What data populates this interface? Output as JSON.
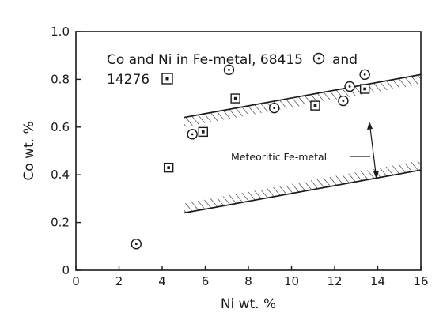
{
  "chart_data": {
    "type": "scatter",
    "title_line1": "Co and Ni in Fe-metal, 68415",
    "title_mid": "and",
    "title_line2": "14276",
    "xlabel": "Ni wt. %",
    "ylabel": "Co wt. %",
    "xlim": [
      0,
      16
    ],
    "ylim": [
      0,
      1.0
    ],
    "x_ticks": [
      "0",
      "2",
      "4",
      "6",
      "8",
      "10",
      "12",
      "14",
      "16"
    ],
    "y_ticks": [
      "0",
      "0.2",
      "0.4",
      "0.6",
      "0.8",
      "1.0"
    ],
    "grid": false,
    "series": [
      {
        "marker": "circle-dot",
        "points": [
          [
            2.8,
            0.11
          ],
          [
            5.4,
            0.57
          ],
          [
            7.1,
            0.84
          ],
          [
            9.2,
            0.68
          ],
          [
            12.4,
            0.71
          ],
          [
            12.7,
            0.77
          ],
          [
            13.4,
            0.82
          ]
        ]
      },
      {
        "marker": "square-dot",
        "points": [
          [
            4.3,
            0.43
          ],
          [
            5.9,
            0.58
          ],
          [
            7.4,
            0.72
          ],
          [
            11.1,
            0.69
          ],
          [
            13.4,
            0.76
          ]
        ]
      }
    ],
    "band": {
      "label": "Meteoritic Fe-metal",
      "upper": [
        [
          5.0,
          0.64
        ],
        [
          16,
          0.82
        ]
      ],
      "lower": [
        [
          5.0,
          0.24
        ],
        [
          16,
          0.42
        ]
      ]
    }
  }
}
